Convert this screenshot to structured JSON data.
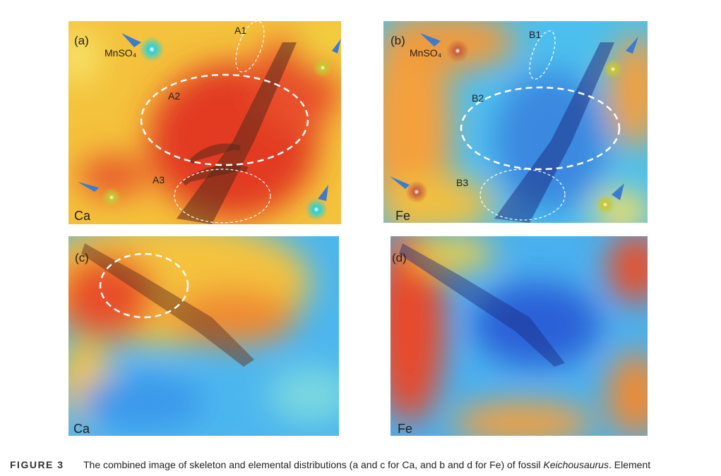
{
  "panels": [
    {
      "label": "(a)",
      "element": "Ca",
      "annotations": [
        "MnSO₄",
        "A1",
        "A2",
        "A3"
      ]
    },
    {
      "label": "(b)",
      "element": "Fe",
      "annotations": [
        "MnSO₄",
        "B1",
        "B2",
        "B3"
      ]
    },
    {
      "label": "(c)",
      "element": "Ca",
      "annotations": []
    },
    {
      "label": "(d)",
      "element": "Fe",
      "annotations": []
    }
  ],
  "caption": {
    "figure": "FIGURE 3",
    "text_before": "The combined image of skeleton and elemental distributions (a and c for Ca, and b and d for Fe) of fossil ",
    "italic": "Keichousaurus",
    "text_after": ". Element"
  }
}
